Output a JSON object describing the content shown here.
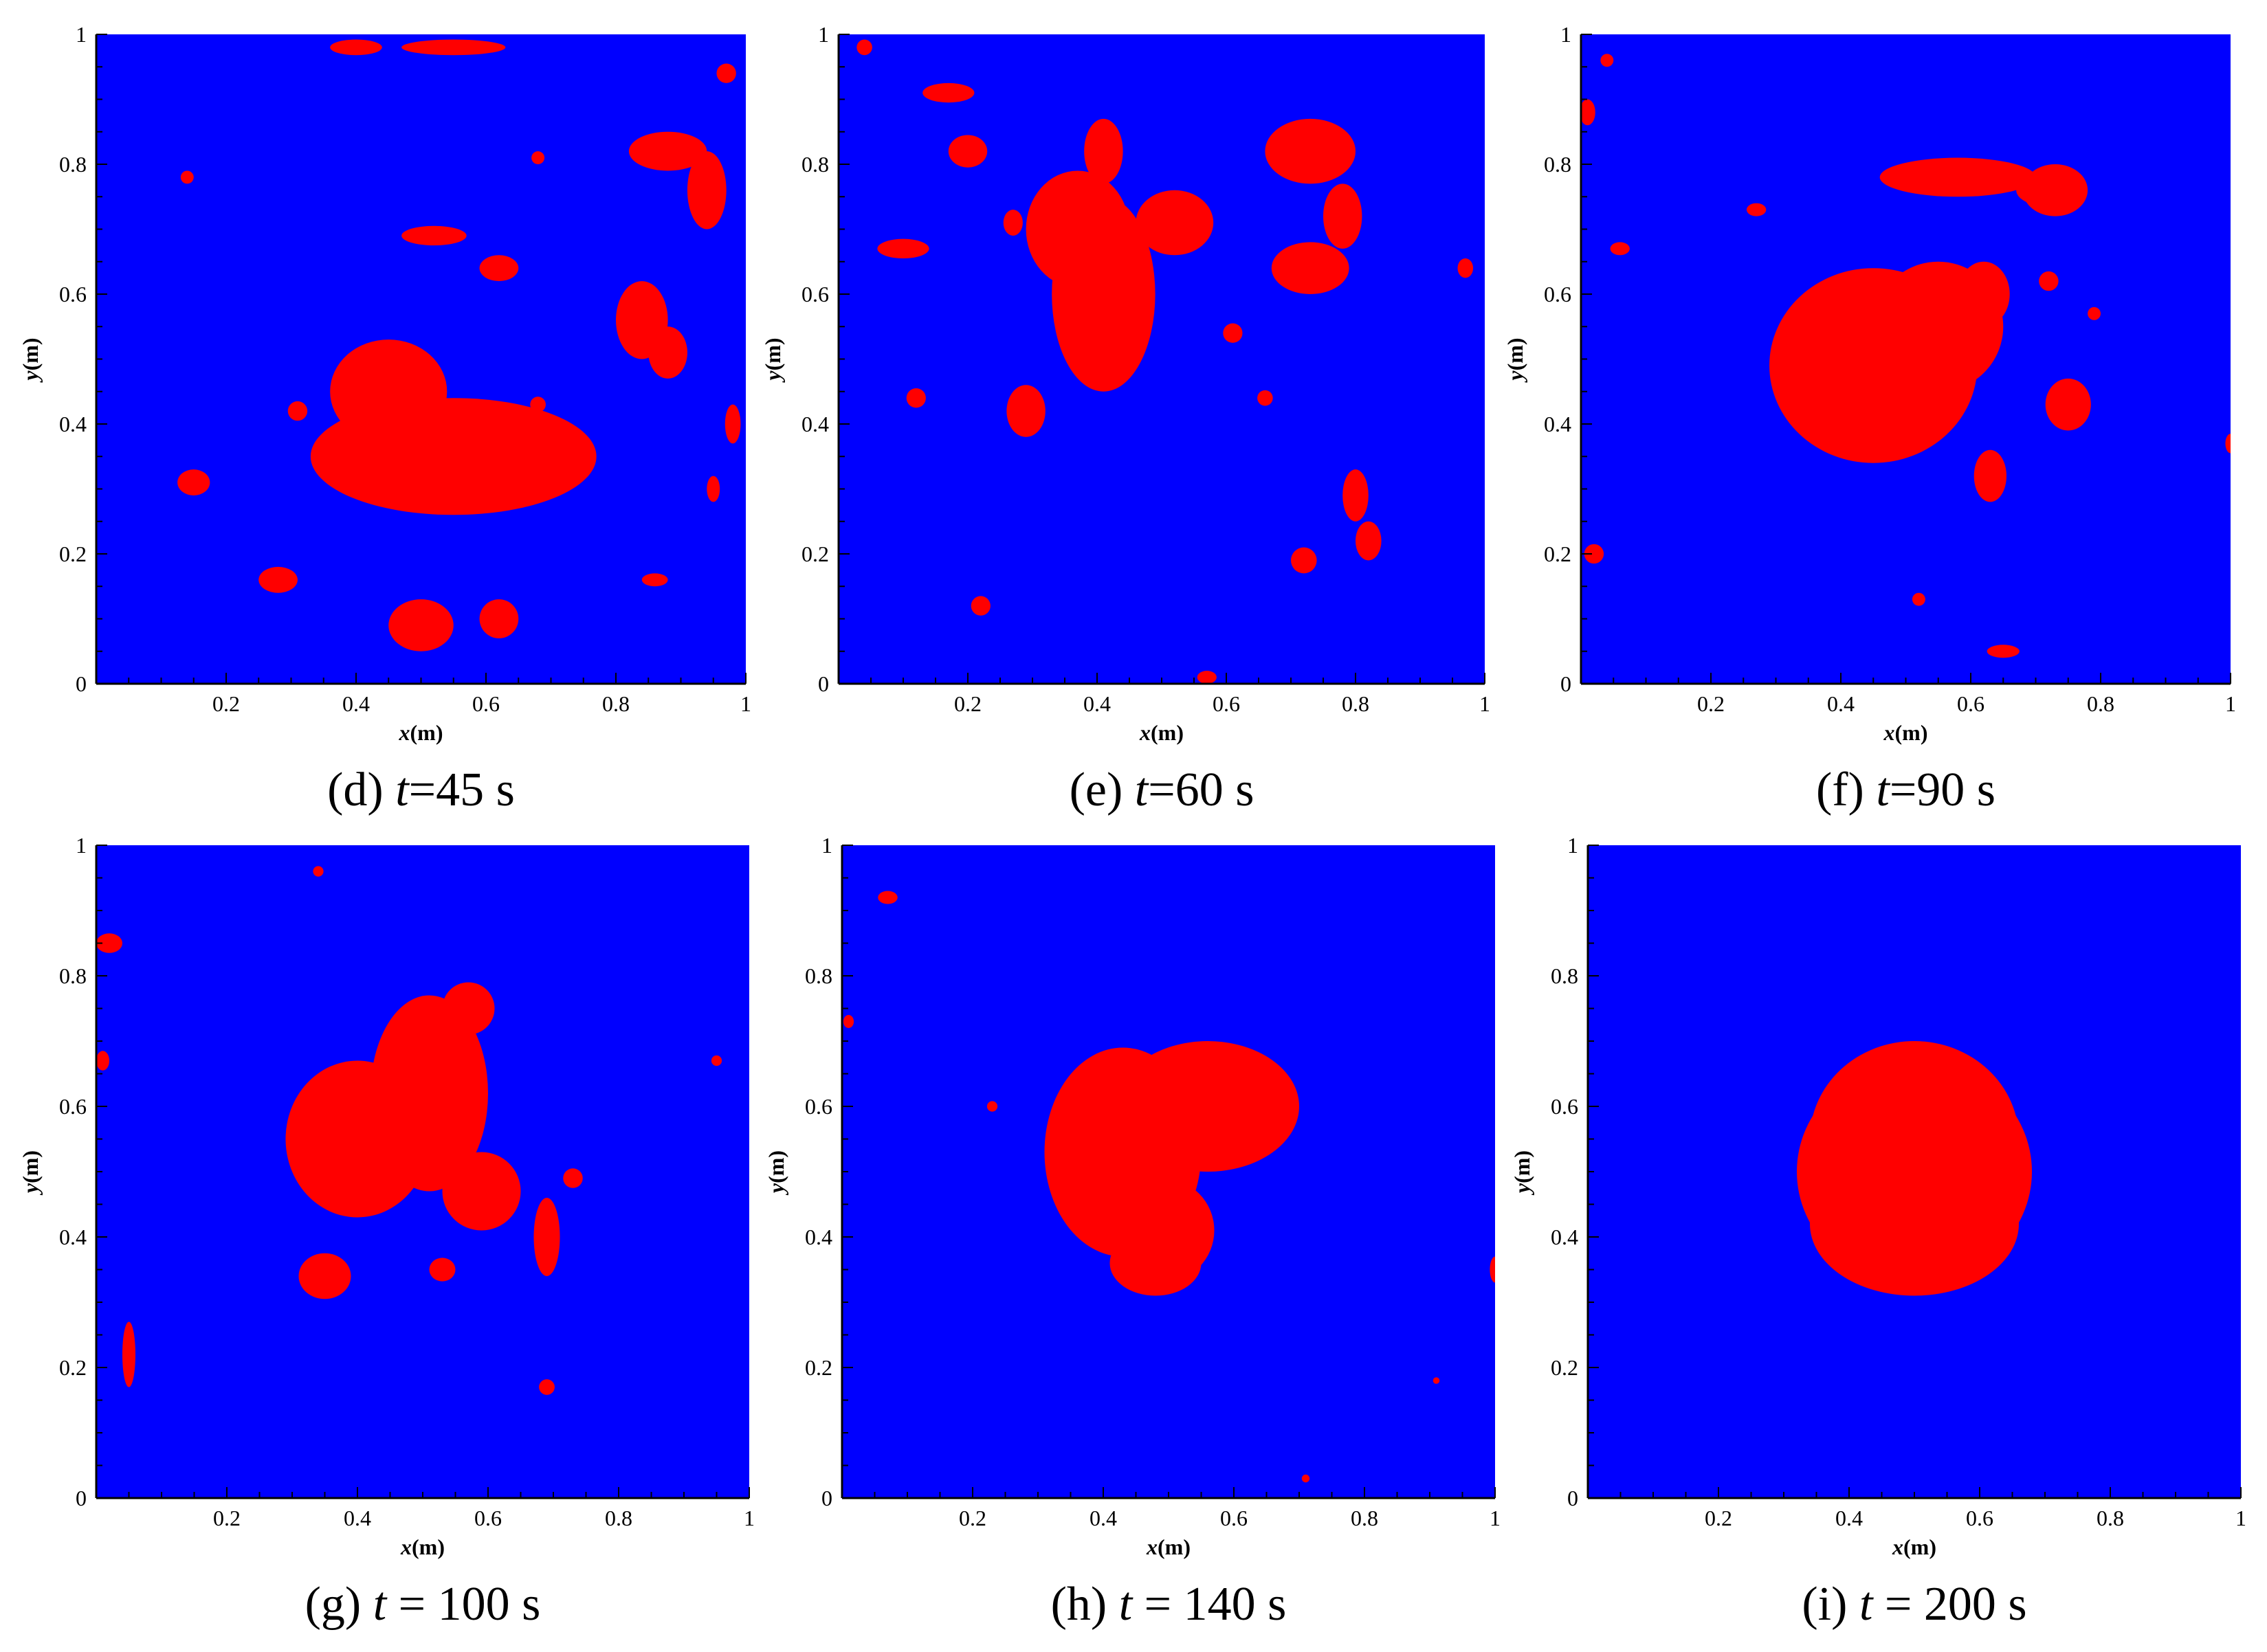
{
  "colors": {
    "background": "#0000ff",
    "droplet": "#ff0000"
  },
  "chart_data": [
    {
      "type": "contour",
      "panel": "d",
      "caption_prefix": "(d) ",
      "caption_var": "t",
      "caption_value": "=45 s",
      "xlabel_var": "x",
      "xlabel_unit": "(m)",
      "ylabel_var": "y",
      "ylabel_unit": "(m)",
      "xlim": [
        0,
        1
      ],
      "ylim": [
        0,
        1
      ],
      "xticks": [
        "0.2",
        "0.4",
        "0.6",
        "0.8",
        "1"
      ],
      "yticks": [
        "0",
        "0.2",
        "0.4",
        "0.6",
        "0.8",
        "1"
      ],
      "blobs": [
        {
          "cx": 0.55,
          "cy": 0.35,
          "rx": 0.22,
          "ry": 0.09
        },
        {
          "cx": 0.45,
          "cy": 0.45,
          "rx": 0.09,
          "ry": 0.08
        },
        {
          "cx": 0.5,
          "cy": 0.09,
          "rx": 0.05,
          "ry": 0.04
        },
        {
          "cx": 0.62,
          "cy": 0.1,
          "rx": 0.03,
          "ry": 0.03
        },
        {
          "cx": 0.15,
          "cy": 0.31,
          "rx": 0.025,
          "ry": 0.02
        },
        {
          "cx": 0.28,
          "cy": 0.16,
          "rx": 0.03,
          "ry": 0.02
        },
        {
          "cx": 0.88,
          "cy": 0.82,
          "rx": 0.06,
          "ry": 0.03
        },
        {
          "cx": 0.94,
          "cy": 0.76,
          "rx": 0.03,
          "ry": 0.06
        },
        {
          "cx": 0.84,
          "cy": 0.56,
          "rx": 0.04,
          "ry": 0.06
        },
        {
          "cx": 0.88,
          "cy": 0.51,
          "rx": 0.03,
          "ry": 0.04
        },
        {
          "cx": 0.55,
          "cy": 0.98,
          "rx": 0.08,
          "ry": 0.012
        },
        {
          "cx": 0.4,
          "cy": 0.98,
          "rx": 0.04,
          "ry": 0.012
        },
        {
          "cx": 0.62,
          "cy": 0.64,
          "rx": 0.03,
          "ry": 0.02
        },
        {
          "cx": 0.52,
          "cy": 0.69,
          "rx": 0.05,
          "ry": 0.015
        },
        {
          "cx": 0.98,
          "cy": 0.4,
          "rx": 0.012,
          "ry": 0.03
        },
        {
          "cx": 0.95,
          "cy": 0.3,
          "rx": 0.01,
          "ry": 0.02
        },
        {
          "cx": 0.31,
          "cy": 0.42,
          "rx": 0.015,
          "ry": 0.015
        },
        {
          "cx": 0.68,
          "cy": 0.43,
          "rx": 0.012,
          "ry": 0.012
        },
        {
          "cx": 0.14,
          "cy": 0.78,
          "rx": 0.01,
          "ry": 0.01
        },
        {
          "cx": 0.68,
          "cy": 0.81,
          "rx": 0.01,
          "ry": 0.01
        },
        {
          "cx": 0.97,
          "cy": 0.94,
          "rx": 0.015,
          "ry": 0.015
        },
        {
          "cx": 0.86,
          "cy": 0.16,
          "rx": 0.02,
          "ry": 0.01
        }
      ]
    },
    {
      "type": "contour",
      "panel": "e",
      "caption_prefix": "(e) ",
      "caption_var": "t",
      "caption_value": "=60 s",
      "xlabel_var": "x",
      "xlabel_unit": "(m)",
      "ylabel_var": "y",
      "ylabel_unit": "(m)",
      "xlim": [
        0,
        1
      ],
      "ylim": [
        0,
        1
      ],
      "xticks": [
        "0.2",
        "0.4",
        "0.6",
        "0.8",
        "1"
      ],
      "yticks": [
        "0",
        "0.2",
        "0.4",
        "0.6",
        "0.8",
        "1"
      ],
      "blobs": [
        {
          "cx": 0.41,
          "cy": 0.6,
          "rx": 0.08,
          "ry": 0.15
        },
        {
          "cx": 0.37,
          "cy": 0.7,
          "rx": 0.08,
          "ry": 0.09
        },
        {
          "cx": 0.52,
          "cy": 0.71,
          "rx": 0.06,
          "ry": 0.05
        },
        {
          "cx": 0.41,
          "cy": 0.82,
          "rx": 0.03,
          "ry": 0.05
        },
        {
          "cx": 0.73,
          "cy": 0.82,
          "rx": 0.07,
          "ry": 0.05
        },
        {
          "cx": 0.78,
          "cy": 0.72,
          "rx": 0.03,
          "ry": 0.05
        },
        {
          "cx": 0.73,
          "cy": 0.64,
          "rx": 0.06,
          "ry": 0.04
        },
        {
          "cx": 0.29,
          "cy": 0.42,
          "rx": 0.03,
          "ry": 0.04
        },
        {
          "cx": 0.2,
          "cy": 0.82,
          "rx": 0.03,
          "ry": 0.025
        },
        {
          "cx": 0.17,
          "cy": 0.91,
          "rx": 0.04,
          "ry": 0.015
        },
        {
          "cx": 0.1,
          "cy": 0.67,
          "rx": 0.04,
          "ry": 0.015
        },
        {
          "cx": 0.82,
          "cy": 0.22,
          "rx": 0.02,
          "ry": 0.03
        },
        {
          "cx": 0.8,
          "cy": 0.29,
          "rx": 0.02,
          "ry": 0.04
        },
        {
          "cx": 0.72,
          "cy": 0.19,
          "rx": 0.02,
          "ry": 0.02
        },
        {
          "cx": 0.12,
          "cy": 0.44,
          "rx": 0.015,
          "ry": 0.015
        },
        {
          "cx": 0.22,
          "cy": 0.12,
          "rx": 0.015,
          "ry": 0.015
        },
        {
          "cx": 0.61,
          "cy": 0.54,
          "rx": 0.015,
          "ry": 0.015
        },
        {
          "cx": 0.66,
          "cy": 0.44,
          "rx": 0.012,
          "ry": 0.012
        },
        {
          "cx": 0.97,
          "cy": 0.64,
          "rx": 0.012,
          "ry": 0.015
        },
        {
          "cx": 0.57,
          "cy": 0.01,
          "rx": 0.015,
          "ry": 0.01
        },
        {
          "cx": 0.04,
          "cy": 0.98,
          "rx": 0.012,
          "ry": 0.012
        },
        {
          "cx": 0.27,
          "cy": 0.71,
          "rx": 0.015,
          "ry": 0.02
        }
      ]
    },
    {
      "type": "contour",
      "panel": "f",
      "caption_prefix": "(f) ",
      "caption_var": "t",
      "caption_value": "=90 s",
      "xlabel_var": "x",
      "xlabel_unit": "(m)",
      "ylabel_var": "y",
      "ylabel_unit": "(m)",
      "xlim": [
        0,
        1
      ],
      "ylim": [
        0,
        1
      ],
      "xticks": [
        "0.2",
        "0.4",
        "0.6",
        "0.8",
        "1"
      ],
      "yticks": [
        "0",
        "0.2",
        "0.4",
        "0.6",
        "0.8",
        "1"
      ],
      "blobs": [
        {
          "cx": 0.45,
          "cy": 0.49,
          "rx": 0.16,
          "ry": 0.15
        },
        {
          "cx": 0.55,
          "cy": 0.55,
          "rx": 0.1,
          "ry": 0.1
        },
        {
          "cx": 0.62,
          "cy": 0.6,
          "rx": 0.04,
          "ry": 0.05
        },
        {
          "cx": 0.58,
          "cy": 0.78,
          "rx": 0.12,
          "ry": 0.03
        },
        {
          "cx": 0.72,
          "cy": 0.76,
          "rx": 0.05,
          "ry": 0.025
        },
        {
          "cx": 0.73,
          "cy": 0.76,
          "rx": 0.05,
          "ry": 0.04
        },
        {
          "cx": 0.75,
          "cy": 0.43,
          "rx": 0.035,
          "ry": 0.04
        },
        {
          "cx": 0.63,
          "cy": 0.32,
          "rx": 0.025,
          "ry": 0.04
        },
        {
          "cx": 0.72,
          "cy": 0.62,
          "rx": 0.015,
          "ry": 0.015
        },
        {
          "cx": 0.27,
          "cy": 0.73,
          "rx": 0.015,
          "ry": 0.01
        },
        {
          "cx": 0.06,
          "cy": 0.67,
          "rx": 0.015,
          "ry": 0.01
        },
        {
          "cx": 0.02,
          "cy": 0.2,
          "rx": 0.015,
          "ry": 0.015
        },
        {
          "cx": 0.01,
          "cy": 0.88,
          "rx": 0.012,
          "ry": 0.02
        },
        {
          "cx": 0.65,
          "cy": 0.05,
          "rx": 0.025,
          "ry": 0.01
        },
        {
          "cx": 0.52,
          "cy": 0.13,
          "rx": 0.01,
          "ry": 0.01
        },
        {
          "cx": 0.04,
          "cy": 0.96,
          "rx": 0.01,
          "ry": 0.01
        },
        {
          "cx": 1.0,
          "cy": 0.37,
          "rx": 0.008,
          "ry": 0.015
        },
        {
          "cx": 0.79,
          "cy": 0.57,
          "rx": 0.01,
          "ry": 0.01
        }
      ]
    },
    {
      "type": "contour",
      "panel": "g",
      "caption_prefix": "(g) ",
      "caption_var": "t",
      "caption_value": " = 100 s",
      "xlabel_var": "x",
      "xlabel_unit": "(m)",
      "ylabel_var": "y",
      "ylabel_unit": "(m)",
      "xlim": [
        0,
        1
      ],
      "ylim": [
        0,
        1
      ],
      "xticks": [
        "0.2",
        "0.4",
        "0.6",
        "0.8",
        "1"
      ],
      "yticks": [
        "0",
        "0.2",
        "0.4",
        "0.6",
        "0.8",
        "1"
      ],
      "blobs": [
        {
          "cx": 0.4,
          "cy": 0.55,
          "rx": 0.11,
          "ry": 0.12
        },
        {
          "cx": 0.51,
          "cy": 0.62,
          "rx": 0.09,
          "ry": 0.15
        },
        {
          "cx": 0.57,
          "cy": 0.75,
          "rx": 0.04,
          "ry": 0.04
        },
        {
          "cx": 0.59,
          "cy": 0.47,
          "rx": 0.06,
          "ry": 0.06
        },
        {
          "cx": 0.69,
          "cy": 0.4,
          "rx": 0.02,
          "ry": 0.06
        },
        {
          "cx": 0.35,
          "cy": 0.34,
          "rx": 0.04,
          "ry": 0.035
        },
        {
          "cx": 0.53,
          "cy": 0.35,
          "rx": 0.02,
          "ry": 0.018
        },
        {
          "cx": 0.73,
          "cy": 0.49,
          "rx": 0.015,
          "ry": 0.015
        },
        {
          "cx": 0.05,
          "cy": 0.22,
          "rx": 0.01,
          "ry": 0.05
        },
        {
          "cx": 0.02,
          "cy": 0.85,
          "rx": 0.02,
          "ry": 0.015
        },
        {
          "cx": 0.69,
          "cy": 0.17,
          "rx": 0.012,
          "ry": 0.012
        },
        {
          "cx": 0.34,
          "cy": 0.96,
          "rx": 0.008,
          "ry": 0.008
        },
        {
          "cx": 0.95,
          "cy": 0.67,
          "rx": 0.008,
          "ry": 0.008
        },
        {
          "cx": 0.01,
          "cy": 0.67,
          "rx": 0.01,
          "ry": 0.015
        }
      ]
    },
    {
      "type": "contour",
      "panel": "h",
      "caption_prefix": "(h) ",
      "caption_var": "t",
      "caption_value": " = 140 s",
      "xlabel_var": "x",
      "xlabel_unit": "(m)",
      "ylabel_var": "y",
      "ylabel_unit": "(m)",
      "xlim": [
        0,
        1
      ],
      "ylim": [
        0,
        1
      ],
      "xticks": [
        "0.2",
        "0.4",
        "0.6",
        "0.8",
        "1"
      ],
      "yticks": [
        "0",
        "0.2",
        "0.4",
        "0.6",
        "0.8",
        "1"
      ],
      "blobs": [
        {
          "cx": 0.43,
          "cy": 0.53,
          "rx": 0.12,
          "ry": 0.16
        },
        {
          "cx": 0.56,
          "cy": 0.6,
          "rx": 0.14,
          "ry": 0.1
        },
        {
          "cx": 0.49,
          "cy": 0.41,
          "rx": 0.08,
          "ry": 0.08
        },
        {
          "cx": 0.48,
          "cy": 0.36,
          "rx": 0.07,
          "ry": 0.05
        },
        {
          "cx": 0.07,
          "cy": 0.92,
          "rx": 0.015,
          "ry": 0.01
        },
        {
          "cx": 0.23,
          "cy": 0.6,
          "rx": 0.008,
          "ry": 0.008
        },
        {
          "cx": 1.0,
          "cy": 0.35,
          "rx": 0.008,
          "ry": 0.02
        },
        {
          "cx": 0.91,
          "cy": 0.18,
          "rx": 0.005,
          "ry": 0.005
        },
        {
          "cx": 0.01,
          "cy": 0.73,
          "rx": 0.008,
          "ry": 0.01
        },
        {
          "cx": 0.71,
          "cy": 0.03,
          "rx": 0.006,
          "ry": 0.006
        }
      ]
    },
    {
      "type": "contour",
      "panel": "i",
      "caption_prefix": "(i) ",
      "caption_var": "t",
      "caption_value": " = 200 s",
      "xlabel_var": "x",
      "xlabel_unit": "(m)",
      "ylabel_var": "y",
      "ylabel_unit": "(m)",
      "xlim": [
        0,
        1
      ],
      "ylim": [
        0,
        1
      ],
      "xticks": [
        "0.2",
        "0.4",
        "0.6",
        "0.8",
        "1"
      ],
      "yticks": [
        "0",
        "0.2",
        "0.4",
        "0.6",
        "0.8",
        "1"
      ],
      "blobs": [
        {
          "cx": 0.5,
          "cy": 0.5,
          "rx": 0.18,
          "ry": 0.17
        },
        {
          "cx": 0.5,
          "cy": 0.55,
          "rx": 0.16,
          "ry": 0.15
        },
        {
          "cx": 0.5,
          "cy": 0.42,
          "rx": 0.16,
          "ry": 0.11
        }
      ]
    }
  ]
}
